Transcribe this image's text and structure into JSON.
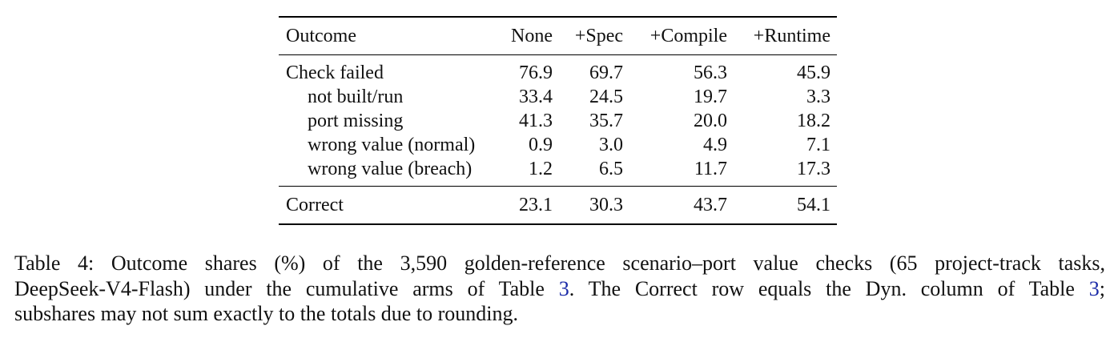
{
  "table": {
    "header": [
      "Outcome",
      "None",
      "+Spec",
      "+Compile",
      "+Runtime"
    ],
    "rows": [
      {
        "label": "Check failed",
        "values": [
          "76.9",
          "69.7",
          "56.3",
          "45.9"
        ]
      }
    ],
    "subrows": [
      {
        "label": "not built/run",
        "values": [
          "33.4",
          "24.5",
          "19.7",
          "3.3"
        ]
      },
      {
        "label": "port missing",
        "values": [
          "41.3",
          "35.7",
          "20.0",
          "18.2"
        ]
      },
      {
        "label": "wrong value (normal)",
        "values": [
          "0.9",
          "3.0",
          "4.9",
          "7.1"
        ]
      },
      {
        "label": "wrong value (breach)",
        "values": [
          "1.2",
          "6.5",
          "11.7",
          "17.3"
        ]
      }
    ],
    "footer_rows": [
      {
        "label": "Correct",
        "values": [
          "23.1",
          "30.3",
          "43.7",
          "54.1"
        ]
      }
    ]
  },
  "caption": {
    "lines": [
      [
        "Table 4: Outcome shares (%) of the 3,590 golden-reference scenario–port value checks (65 project-track tasks,"
      ],
      [
        "DeepSeek-V4-Flash) under the cumulative arms of Table ",
        "3",
        ". The Correct row equals the Dyn. column of Table ",
        "3",
        ";"
      ],
      [
        "subshares may not sum exactly to the totals due to rounding."
      ]
    ]
  }
}
